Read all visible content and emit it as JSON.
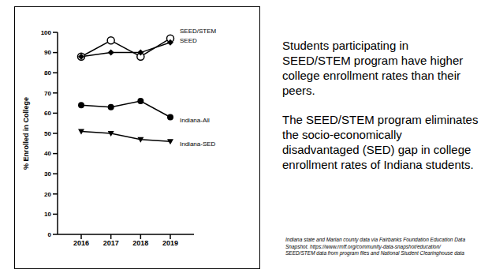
{
  "chart_data": {
    "type": "line",
    "ylabel": "% Enrolled in College",
    "categories": [
      "2016",
      "2017",
      "2018",
      "2019"
    ],
    "series": [
      {
        "name": "SEED/STEM",
        "color": "#000000",
        "marker": "circle-open",
        "values": [
          88,
          96,
          88,
          97
        ]
      },
      {
        "name": "SEED",
        "color": "#000000",
        "marker": "diamond",
        "values": [
          88,
          90,
          90,
          95
        ]
      },
      {
        "name": "Indiana-All",
        "color": "#000000",
        "marker": "circle",
        "values": [
          64,
          63,
          66,
          58
        ]
      },
      {
        "name": "Indiana-SED",
        "color": "#000000",
        "marker": "triangle-down",
        "values": [
          51,
          50,
          47,
          46
        ]
      }
    ],
    "ylim": [
      0,
      100
    ],
    "yticks": [
      0,
      10,
      20,
      30,
      40,
      50,
      60,
      70,
      80,
      90,
      100
    ],
    "grid": false,
    "annotations": [
      "Students participating in SEED/STEM program have higher college enrollment rates than their peers.",
      "The SEED/STEM program eliminates the socio-economically disadvantaged (SED) gap in college enrollment rates of Indiana students.",
      "Indiana state and Marian county data via Fairbanks Foundation Education Data Snapshot.  https://www.rmff.org/community-data-snapshot/education/",
      "SEED/STEM data from program files and National Student Clearinghouse data"
    ]
  }
}
